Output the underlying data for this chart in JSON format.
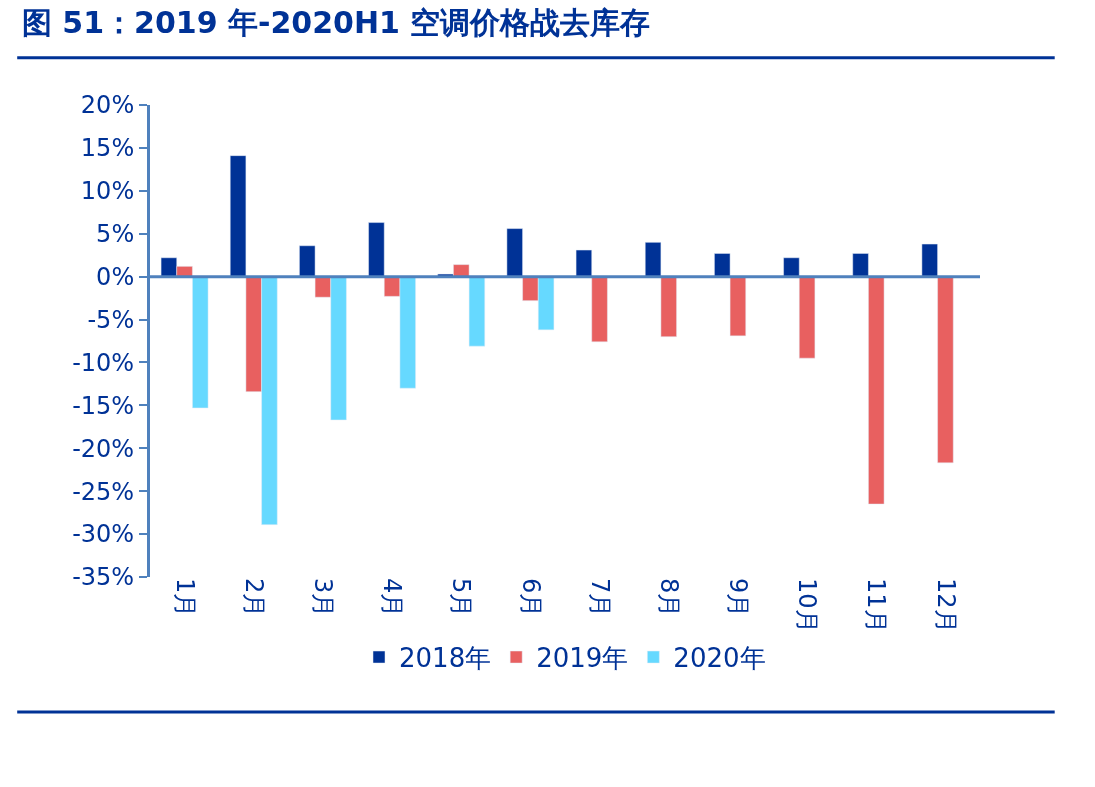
{
  "chart_data": {
    "type": "bar",
    "title": "图 51：2019 年-2020H1 空调价格战去库存",
    "categories": [
      "1月",
      "2月",
      "3月",
      "4月",
      "5月",
      "6月",
      "7月",
      "8月",
      "9月",
      "10月",
      "11月",
      "12月"
    ],
    "series": [
      {
        "name": "2018年",
        "color": "#003296",
        "values": [
          2.2,
          14.1,
          3.6,
          6.3,
          0.3,
          5.6,
          3.1,
          4.0,
          2.7,
          2.2,
          2.7,
          3.8
        ]
      },
      {
        "name": "2019年",
        "color": "#e86060",
        "values": [
          1.2,
          -13.4,
          -2.4,
          -2.3,
          1.4,
          -2.8,
          -7.6,
          -7.0,
          -6.9,
          -9.5,
          -26.5,
          -21.7
        ]
      },
      {
        "name": "2020年",
        "color": "#66d9ff",
        "values": [
          -15.3,
          -28.9,
          -16.7,
          -13.0,
          -8.1,
          -6.2,
          null,
          null,
          null,
          null,
          null,
          null
        ]
      }
    ],
    "ylim": [
      -35,
      20
    ],
    "yticks": [
      {
        "value": -35,
        "label": "-35%"
      },
      {
        "value": -30,
        "label": "-30%"
      },
      {
        "value": -25,
        "label": "-25%"
      },
      {
        "value": -20,
        "label": "-20%"
      },
      {
        "value": -15,
        "label": "-15%"
      },
      {
        "value": -10,
        "label": "-10%"
      },
      {
        "value": -5,
        "label": "-5%"
      },
      {
        "value": 0,
        "label": "0%"
      },
      {
        "value": 5,
        "label": "5%"
      },
      {
        "value": 10,
        "label": "10%"
      },
      {
        "value": 15,
        "label": "15%"
      },
      {
        "value": 20,
        "label": "20%"
      }
    ],
    "ref_lines": [
      {
        "axis": "y",
        "value": 0,
        "color": "#4f81bd"
      }
    ],
    "legend": "bottom"
  }
}
